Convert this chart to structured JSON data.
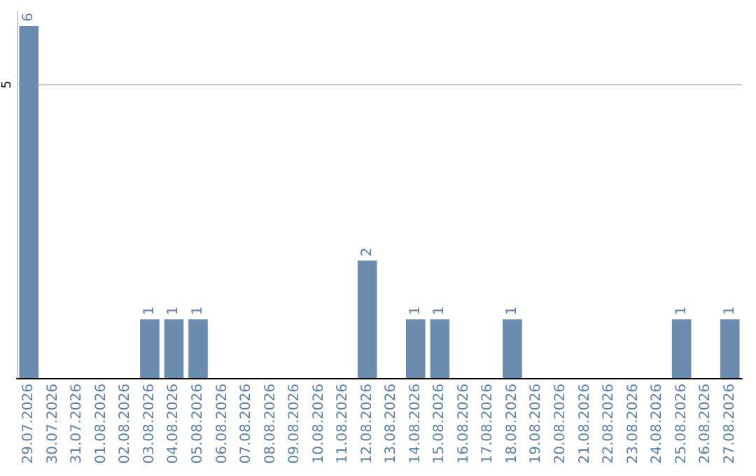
{
  "chart_data": {
    "type": "bar",
    "categories": [
      "29.07.2026",
      "30.07.2026",
      "31.07.2026",
      "01.08.2026",
      "02.08.2026",
      "03.08.2026",
      "04.08.2026",
      "05.08.2026",
      "06.08.2026",
      "07.08.2026",
      "08.08.2026",
      "09.08.2026",
      "10.08.2026",
      "11.08.2026",
      "12.08.2026",
      "13.08.2026",
      "14.08.2026",
      "15.08.2026",
      "16.08.2026",
      "17.08.2026",
      "18.08.2026",
      "19.08.2026",
      "20.08.2026",
      "21.08.2026",
      "22.08.2026",
      "23.08.2026",
      "24.08.2026",
      "25.08.2026",
      "26.08.2026",
      "27.08.2026"
    ],
    "values": [
      6,
      0,
      0,
      0,
      0,
      1,
      1,
      1,
      0,
      0,
      0,
      0,
      0,
      0,
      2,
      0,
      1,
      1,
      0,
      0,
      1,
      0,
      0,
      0,
      0,
      0,
      0,
      1,
      0,
      1
    ],
    "value_labels": [
      "6",
      null,
      null,
      null,
      null,
      "1",
      "1",
      "1",
      null,
      null,
      null,
      null,
      null,
      null,
      "2",
      null,
      "1",
      "1",
      null,
      null,
      "1",
      null,
      null,
      null,
      null,
      null,
      null,
      "1",
      null,
      "1"
    ],
    "color": "#6b8cae",
    "ylim": [
      0,
      6.25
    ],
    "yticks": [
      5
    ],
    "grid": "y"
  }
}
